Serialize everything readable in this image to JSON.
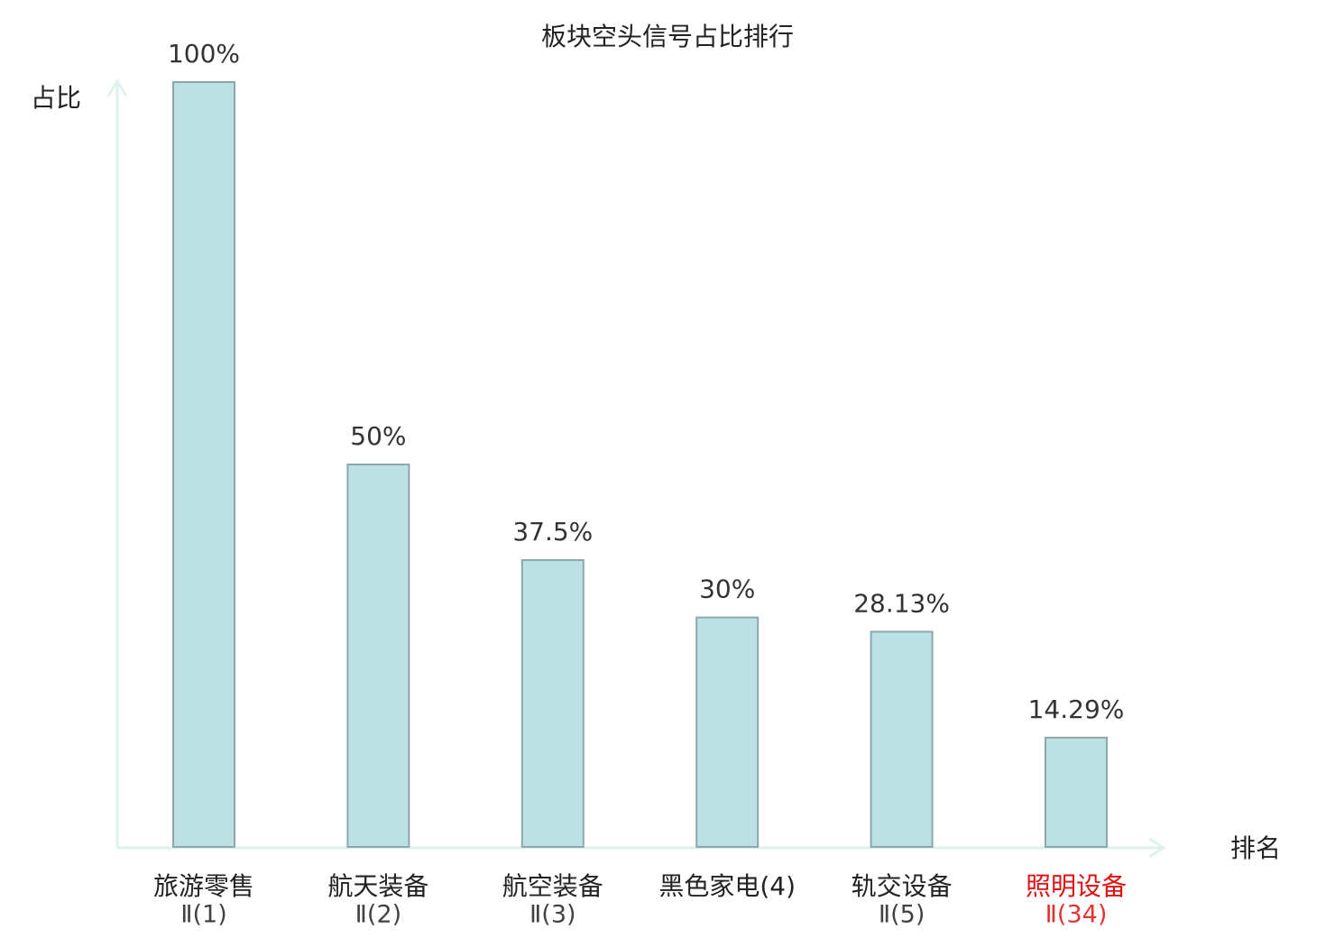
{
  "chart_data": {
    "type": "bar",
    "title": "板块空头信号占比排行",
    "y_label": "占比",
    "x_label": "排名",
    "categories": [
      [
        "旅游零售",
        "Ⅱ(1)"
      ],
      [
        "航天装备",
        "Ⅱ(2)"
      ],
      [
        "航空装备",
        "Ⅱ(3)"
      ],
      [
        "黑色家电(4)"
      ],
      [
        "轨交设备",
        "Ⅱ(5)"
      ],
      [
        "照明设备",
        "Ⅱ(34)"
      ]
    ],
    "category_label_colors": [
      "#222222",
      "#222222",
      "#222222",
      "#222222",
      "#222222",
      "#e01010"
    ],
    "values": [
      100,
      50,
      37.5,
      30,
      28.13,
      14.29
    ],
    "value_labels": [
      "100%",
      "50%",
      "37.5%",
      "30%",
      "28.13%",
      "14.29%"
    ],
    "color": "#bde0e3",
    "edge_color": "#8aa9ac",
    "axis_color": "#dff1ee",
    "ylim": [
      0,
      100
    ]
  }
}
